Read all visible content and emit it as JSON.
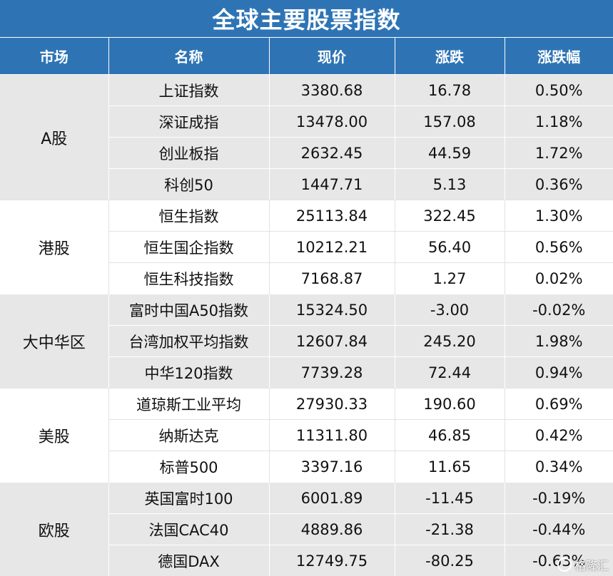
{
  "title": "全球主要股票指数",
  "columns": [
    "市场",
    "名称",
    "现价",
    "涨跌",
    "涨跌幅"
  ],
  "groups": [
    {
      "market": "A股",
      "rows": [
        {
          "name": "上证指数",
          "price": "3380.68",
          "change": "16.78",
          "pct": "0.50%"
        },
        {
          "name": "深证成指",
          "price": "13478.00",
          "change": "157.08",
          "pct": "1.18%"
        },
        {
          "name": "创业板指",
          "price": "2632.45",
          "change": "44.59",
          "pct": "1.72%"
        },
        {
          "name": "科创50",
          "price": "1447.71",
          "change": "5.13",
          "pct": "0.36%"
        }
      ]
    },
    {
      "market": "港股",
      "rows": [
        {
          "name": "恒生指数",
          "price": "25113.84",
          "change": "322.45",
          "pct": "1.30%"
        },
        {
          "name": "恒生国企指数",
          "price": "10212.21",
          "change": "56.40",
          "pct": "0.56%"
        },
        {
          "name": "恒生科技指数",
          "price": "7168.87",
          "change": "1.27",
          "pct": "0.02%"
        }
      ]
    },
    {
      "market": "大中华区",
      "rows": [
        {
          "name": "富时中国A50指数",
          "price": "15324.50",
          "change": "-3.00",
          "pct": "-0.02%"
        },
        {
          "name": "台湾加权平均指数",
          "price": "12607.84",
          "change": "245.20",
          "pct": "1.98%"
        },
        {
          "name": "中华120指数",
          "price": "7739.28",
          "change": "72.44",
          "pct": "0.94%"
        }
      ]
    },
    {
      "market": "美股",
      "rows": [
        {
          "name": "道琼斯工业平均",
          "price": "27930.33",
          "change": "190.60",
          "pct": "0.69%"
        },
        {
          "name": "纳斯达克",
          "price": "11311.80",
          "change": "46.85",
          "pct": "0.42%"
        },
        {
          "name": "标普500",
          "price": "3397.16",
          "change": "11.65",
          "pct": "0.34%"
        }
      ]
    },
    {
      "market": "欧股",
      "rows": [
        {
          "name": "英国富时100",
          "price": "6001.89",
          "change": "-11.45",
          "pct": "-0.19%"
        },
        {
          "name": "法国CAC40",
          "price": "4889.86",
          "change": "-21.38",
          "pct": "-0.44%"
        },
        {
          "name": "德国DAX",
          "price": "12749.75",
          "change": "-80.25",
          "pct": "-0.63%"
        }
      ]
    }
  ],
  "watermark": "格隆汇"
}
